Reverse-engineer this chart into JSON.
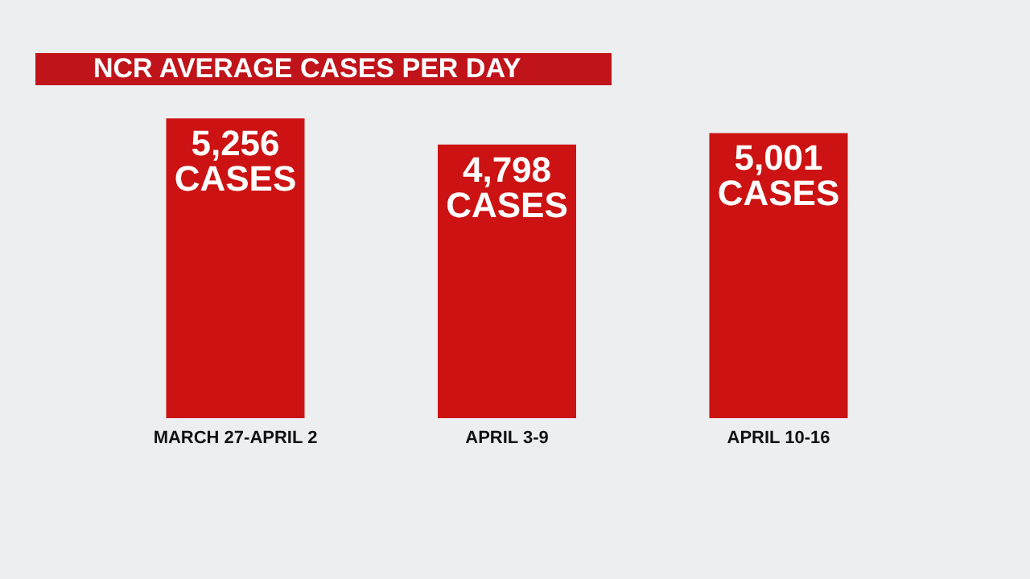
{
  "chart_data": {
    "type": "bar",
    "title": "NCR AVERAGE CASES PER DAY",
    "categories": [
      "MARCH 27-APRIL 2",
      "APRIL 3-9",
      "APRIL 10-16"
    ],
    "values": [
      5256,
      4798,
      5001
    ],
    "color": "#cc1212",
    "value_labels": [
      "5,256 CASES",
      "4,798 CASES",
      "5,001 CASES"
    ]
  }
}
